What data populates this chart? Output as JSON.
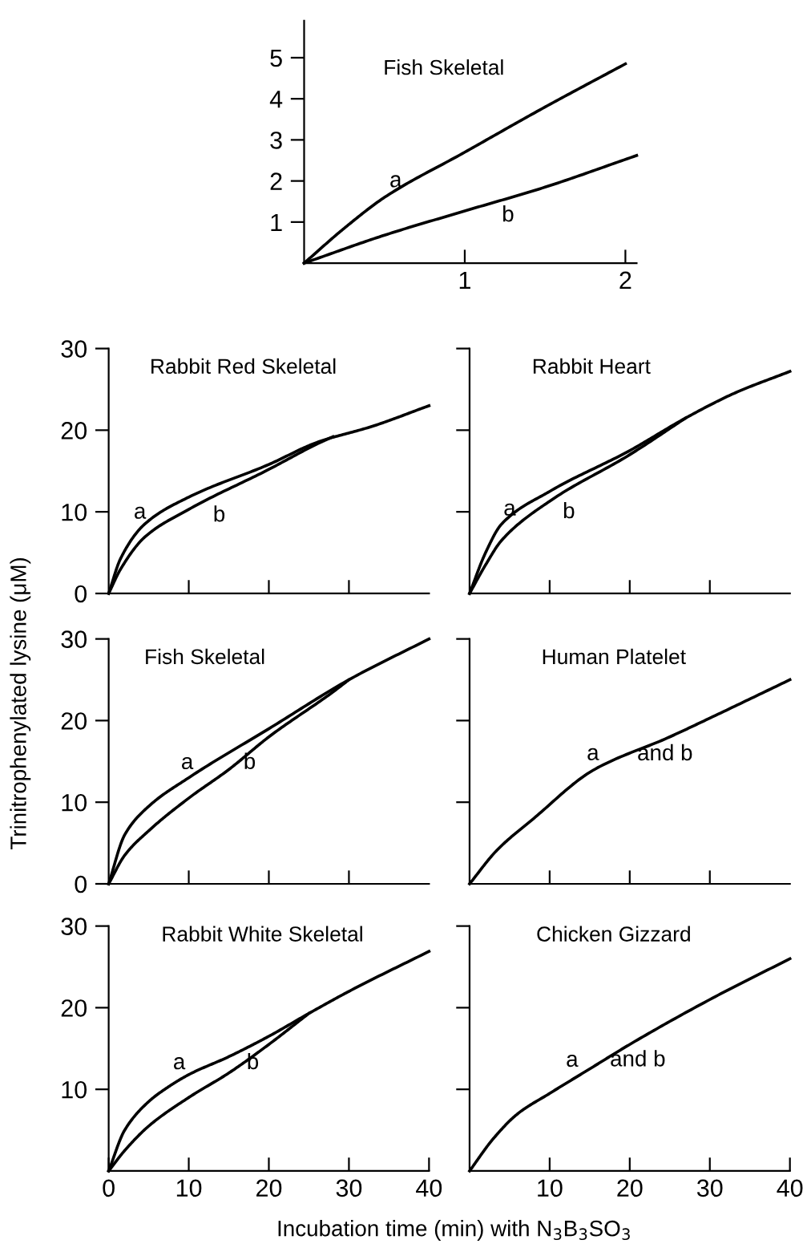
{
  "chart_data": [
    {
      "type": "line",
      "title": "Fish Skeletal",
      "xlim": [
        0,
        2.07
      ],
      "ylim": [
        0,
        5.9
      ],
      "xticks": [
        1,
        2
      ],
      "yticks": [
        1,
        2,
        3,
        4,
        5
      ],
      "series": [
        {
          "color": "#000000",
          "x": [
            0,
            0.25,
            0.5,
            1,
            1.5,
            2
          ],
          "values": [
            0,
            0.85,
            1.6,
            2.7,
            3.8,
            4.85
          ]
        },
        {
          "color": "#000000",
          "x": [
            0,
            0.5,
            1,
            1.5,
            2.07
          ],
          "values": [
            0,
            0.68,
            1.27,
            1.85,
            2.62
          ]
        }
      ],
      "annotations": [
        {
          "text": "a",
          "x": 0.5,
          "y": 1.6
        },
        {
          "text": "b",
          "x": 1,
          "y": 1.27
        }
      ]
    },
    {
      "type": "line",
      "title": "Rabbit Red Skeletal",
      "xlim": [
        0,
        40
      ],
      "ylim": [
        0,
        30
      ],
      "tick_labels": "y",
      "xticks": [
        {
          "value": 10,
          "label": null
        },
        {
          "value": 20,
          "label": null
        },
        {
          "value": 30,
          "label": null
        }
      ],
      "yticks": [
        0,
        10,
        20,
        30
      ],
      "series": [
        {
          "color": "#000000",
          "x": [
            0,
            1.5,
            4.5,
            10,
            20,
            26,
            33,
            40
          ],
          "values": [
            0,
            4.3,
            8.5,
            11.8,
            15.8,
            18.5,
            20.5,
            23
          ]
        },
        {
          "color": "#000000",
          "x": [
            0,
            1.5,
            4.5,
            10,
            20,
            26,
            28
          ],
          "values": [
            0,
            3,
            6.9,
            10.3,
            15.2,
            18.3,
            19.2
          ]
        }
      ],
      "annotations": [
        {
          "text": "a",
          "x": 4.5,
          "y": 8.5
        },
        {
          "text": "b",
          "x": 10,
          "y": 10.3
        }
      ]
    },
    {
      "type": "line",
      "title": "Rabbit Heart",
      "xlim": [
        0,
        40
      ],
      "ylim": [
        0,
        30
      ],
      "tick_labels": false,
      "xticks": [
        {
          "value": 10,
          "label": null
        },
        {
          "value": 20,
          "label": null
        },
        {
          "value": 30,
          "label": null
        }
      ],
      "yticks": [
        {
          "value": 10,
          "label": null
        },
        {
          "value": 20,
          "label": null
        },
        {
          "value": 30,
          "label": null
        }
      ],
      "series": [
        {
          "color": "#000000",
          "x": [
            0,
            2,
            4,
            10,
            20,
            27,
            33,
            40
          ],
          "values": [
            0,
            5,
            8.5,
            12.5,
            17.5,
            21.5,
            24.5,
            27.2
          ]
        },
        {
          "color": "#000000",
          "x": [
            0,
            2,
            4,
            10,
            20,
            27
          ],
          "values": [
            0,
            3.5,
            6.5,
            11.3,
            17,
            21.5
          ]
        }
      ],
      "annotations": [
        {
          "text": "a",
          "x": 4,
          "y": 8.5
        },
        {
          "text": "b",
          "x": 10,
          "y": 11.3
        }
      ]
    },
    {
      "type": "line",
      "title": "Fish Skeletal",
      "ylabel": "Trinitrophenylated lysine (μM)",
      "xlim": [
        0,
        40
      ],
      "ylim": [
        0,
        30
      ],
      "tick_labels": "y",
      "xticks": [
        {
          "value": 10,
          "label": null
        },
        {
          "value": 20,
          "label": null
        },
        {
          "value": 30,
          "label": null
        }
      ],
      "yticks": [
        0,
        10,
        20,
        30
      ],
      "series": [
        {
          "color": "#000000",
          "x": [
            0,
            2,
            5,
            10,
            20,
            30,
            40
          ],
          "values": [
            0,
            6,
            9.5,
            13,
            19,
            25,
            30
          ]
        },
        {
          "color": "#000000",
          "x": [
            0,
            2,
            5,
            10,
            15,
            20,
            28,
            30
          ],
          "values": [
            0,
            3.5,
            6.5,
            10.5,
            14,
            18,
            23.5,
            25
          ]
        }
      ],
      "annotations": [
        {
          "text": "a",
          "x": 10,
          "y": 13
        },
        {
          "text": "b",
          "x": 15,
          "y": 14
        }
      ]
    },
    {
      "type": "line",
      "title": "Human Platelet",
      "xlim": [
        0,
        40
      ],
      "ylim": [
        0,
        30
      ],
      "tick_labels": false,
      "xticks": [
        {
          "value": 10,
          "label": null
        },
        {
          "value": 20,
          "label": null
        },
        {
          "value": 30,
          "label": null
        }
      ],
      "yticks": [
        {
          "value": 10,
          "label": null
        },
        {
          "value": 20,
          "label": null
        },
        {
          "value": 30,
          "label": null
        }
      ],
      "series": [
        {
          "color": "#000000",
          "x": [
            0,
            3.4,
            8,
            15.4,
            25,
            30,
            40
          ],
          "values": [
            0,
            4.1,
            8,
            13.9,
            18,
            20.3,
            25
          ]
        }
      ],
      "annotations": [
        {
          "text": "a",
          "x": 15.4,
          "y": 13.9
        },
        {
          "text": "and b",
          "x": 25,
          "y": 18
        }
      ]
    },
    {
      "type": "line",
      "title": "Rabbit White Skeletal",
      "xlabel": "Incubation time (min) with N$_{3}$B$_{3}$SO$_{3}$",
      "xlim": [
        0,
        40
      ],
      "ylim": [
        0,
        30
      ],
      "xticks": [
        0,
        10,
        20,
        30,
        40
      ],
      "yticks": [
        10,
        20,
        30
      ],
      "series": [
        {
          "color": "#000000",
          "x": [
            0,
            2,
            5,
            7,
            10,
            15,
            20,
            25,
            30,
            40
          ],
          "values": [
            0,
            5,
            8.5,
            10,
            11.8,
            14,
            16.5,
            19.3,
            22,
            26.9
          ]
        },
        {
          "color": "#000000",
          "x": [
            0,
            2,
            5,
            10,
            15,
            20,
            25
          ],
          "values": [
            0,
            2.5,
            5.5,
            9,
            12,
            15.5,
            19.3
          ]
        }
      ],
      "annotations": [
        {
          "text": "a",
          "x": 10,
          "y": 11.8
        },
        {
          "text": "b",
          "x": 15,
          "y": 12
        }
      ]
    },
    {
      "type": "line",
      "title": "Chicken Gizzard",
      "xlim": [
        0,
        40
      ],
      "ylim": [
        0,
        30
      ],
      "tick_labels": "x",
      "xticks": [
        10,
        20,
        30,
        40
      ],
      "yticks": [
        {
          "value": 10,
          "label": null
        },
        {
          "value": 20,
          "label": null
        },
        {
          "value": 30,
          "label": null
        }
      ],
      "series": [
        {
          "color": "#000000",
          "x": [
            0,
            3,
            6,
            10,
            15,
            20,
            30,
            40
          ],
          "values": [
            0,
            4,
            7,
            9.5,
            12.5,
            15.5,
            21,
            26
          ]
        }
      ],
      "annotations": [
        {
          "text": "a",
          "x": 15,
          "y": 12.5
        },
        {
          "text": "and b",
          "x": 20,
          "y": 15.5
        }
      ]
    }
  ]
}
